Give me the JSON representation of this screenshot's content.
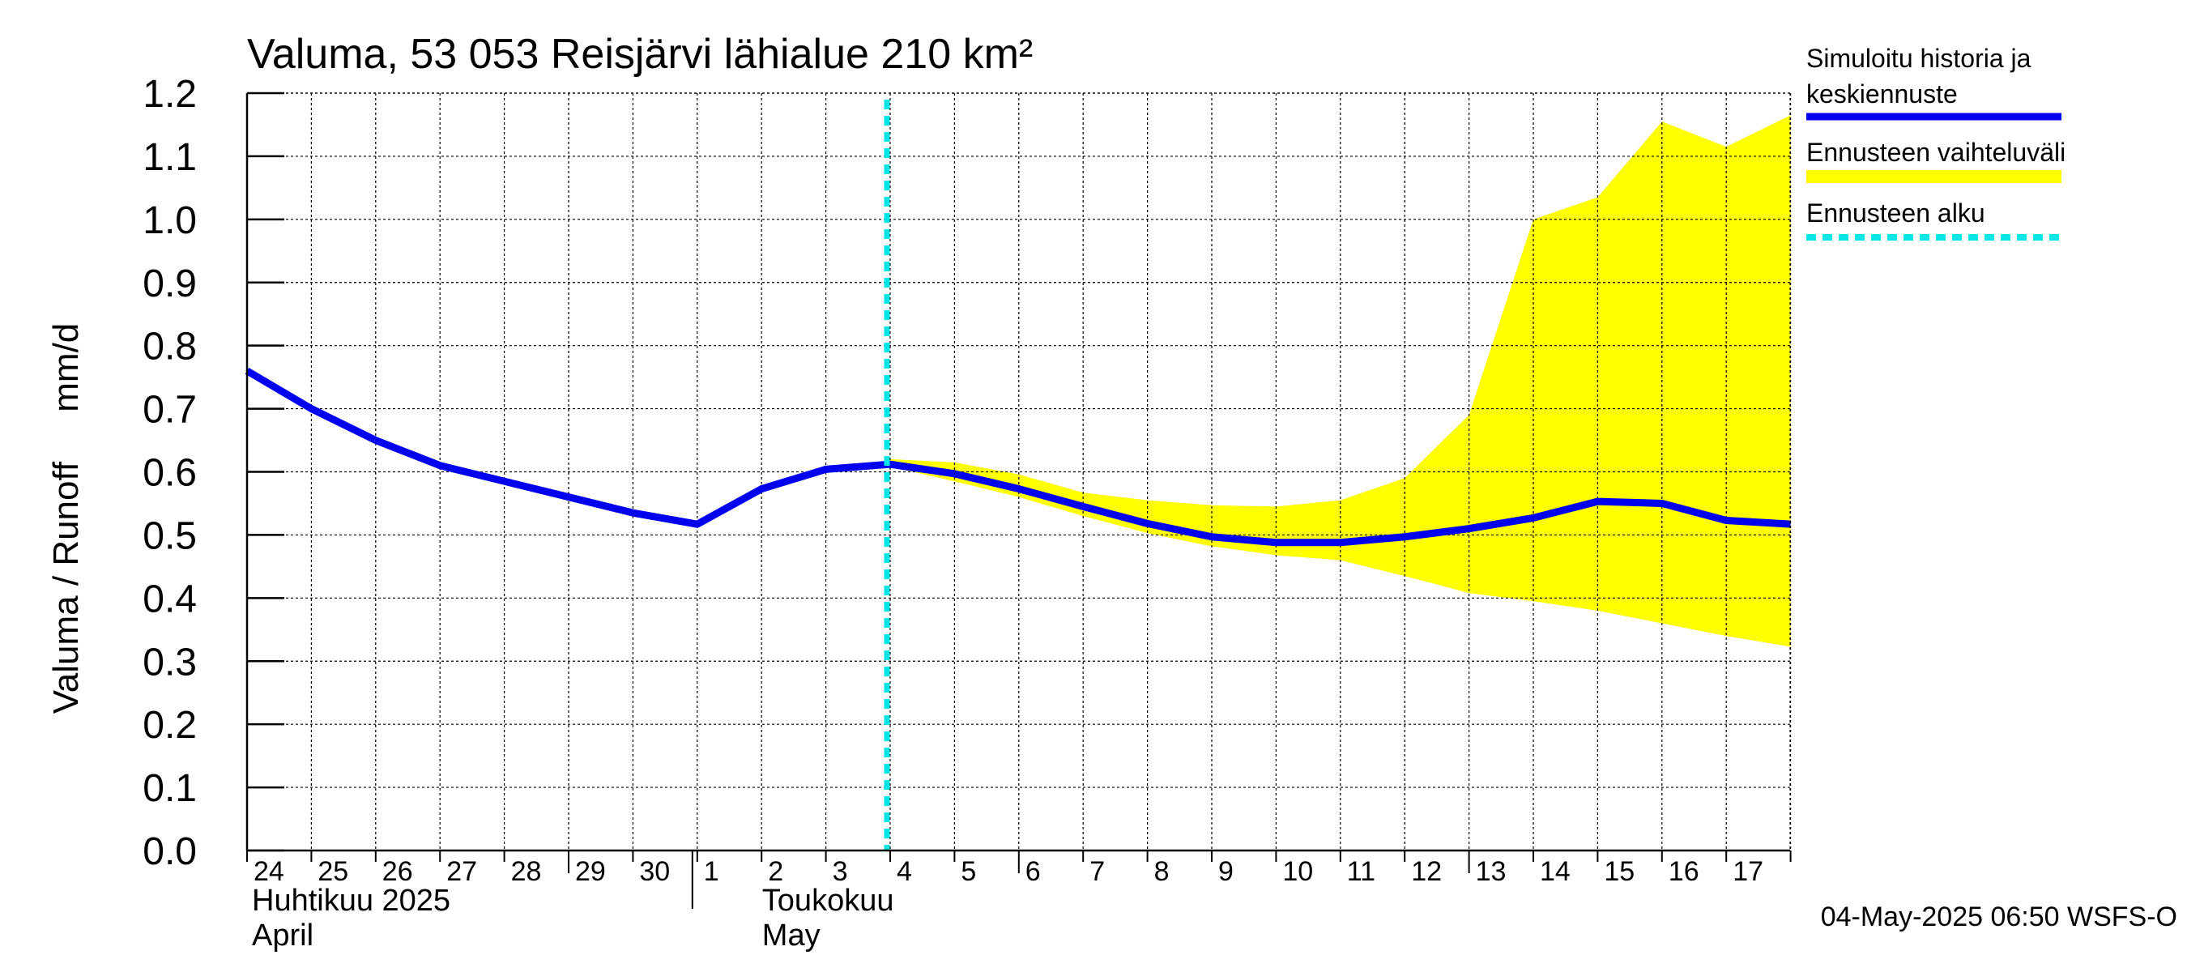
{
  "chart_data": {
    "type": "line",
    "title": "Valuma, 53 053 Reisjärvi lähialue 210 km²",
    "ylabel": "Valuma / Runoff     mm/d",
    "ylim": [
      0.0,
      1.2
    ],
    "yticks": [
      "0.0",
      "0.1",
      "0.2",
      "0.3",
      "0.4",
      "0.5",
      "0.6",
      "0.7",
      "0.8",
      "0.9",
      "1.0",
      "1.1",
      "1.2"
    ],
    "grid": true,
    "x_day_labels": [
      "24",
      "25",
      "26",
      "27",
      "28",
      "29",
      "30",
      "1",
      "2",
      "3",
      "4",
      "5",
      "6",
      "7",
      "8",
      "9",
      "10",
      "11",
      "12",
      "13",
      "14",
      "15",
      "16",
      "17"
    ],
    "month_labels": [
      {
        "fi": "Huhtikuu  2025",
        "en": "April"
      },
      {
        "fi": "Toukokuu",
        "en": "May"
      }
    ],
    "forecast_start": "2025-05-04",
    "series": [
      {
        "name": "Simuloitu historia ja keskiennuste",
        "color": "#0000ee",
        "x": [
          "2025-04-24",
          "2025-04-25",
          "2025-04-26",
          "2025-04-27",
          "2025-04-28",
          "2025-04-29",
          "2025-04-30",
          "2025-05-01",
          "2025-05-02",
          "2025-05-03",
          "2025-05-04",
          "2025-05-05",
          "2025-05-06",
          "2025-05-07",
          "2025-05-08",
          "2025-05-09",
          "2025-05-10",
          "2025-05-11",
          "2025-05-12",
          "2025-05-13",
          "2025-05-14",
          "2025-05-15",
          "2025-05-16",
          "2025-05-17",
          "2025-05-18"
        ],
        "values": [
          0.76,
          0.7,
          0.65,
          0.61,
          0.585,
          0.56,
          0.535,
          0.517,
          0.573,
          0.604,
          0.612,
          0.597,
          0.573,
          0.545,
          0.518,
          0.497,
          0.488,
          0.488,
          0.497,
          0.51,
          0.527,
          0.553,
          0.55,
          0.523,
          0.517
        ]
      },
      {
        "name": "Ennusteen vaihteluväli",
        "color": "#ffff00",
        "x": [
          "2025-05-04",
          "2025-05-05",
          "2025-05-06",
          "2025-05-07",
          "2025-05-08",
          "2025-05-09",
          "2025-05-10",
          "2025-05-11",
          "2025-05-12",
          "2025-05-13",
          "2025-05-14",
          "2025-05-15",
          "2025-05-16",
          "2025-05-17",
          "2025-05-18"
        ],
        "upper": [
          0.62,
          0.615,
          0.596,
          0.567,
          0.555,
          0.547,
          0.545,
          0.555,
          0.59,
          0.69,
          1.0,
          1.035,
          1.155,
          1.115,
          1.165
        ],
        "lower": [
          0.608,
          0.585,
          0.56,
          0.53,
          0.503,
          0.482,
          0.468,
          0.46,
          0.435,
          0.408,
          0.395,
          0.38,
          0.36,
          0.34,
          0.323
        ]
      },
      {
        "name": "Ennusteen alku",
        "color": "#00e5e5"
      }
    ],
    "footer": "04-May-2025 06:50 WSFS-O"
  }
}
